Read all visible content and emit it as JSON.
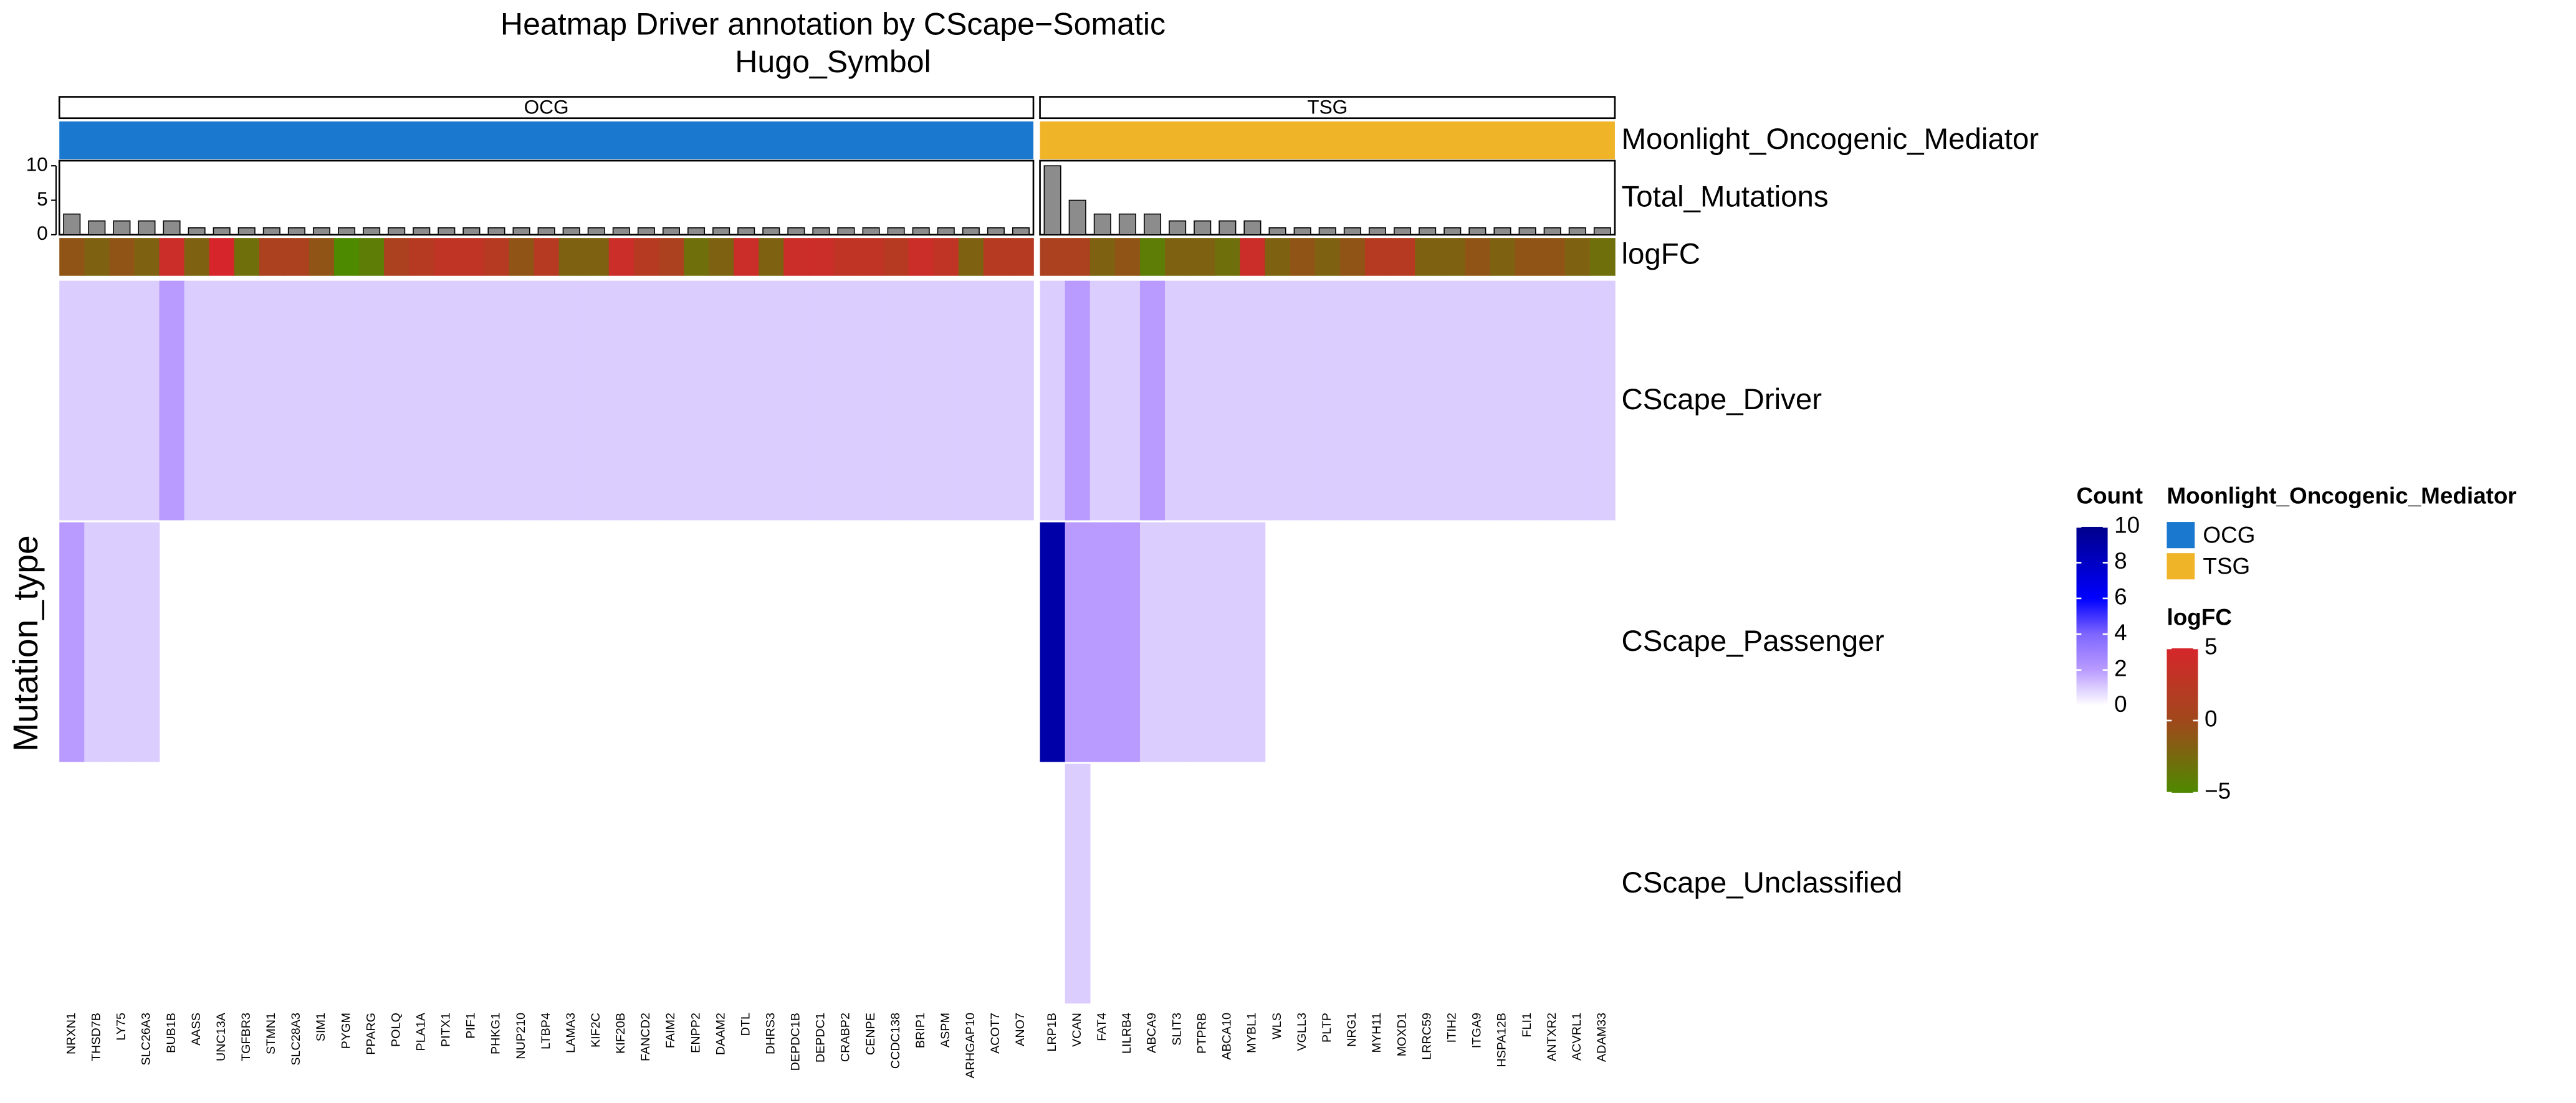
{
  "chart_data": {
    "type": "heatmap",
    "title": "Heatmap Driver annotation by CScape−Somatic",
    "column_title": "Hugo_Symbol",
    "y_label": "Mutation_type",
    "rows": [
      "CScape_Driver",
      "CScape_Passenger",
      "CScape_Unclassified"
    ],
    "annotations": {
      "group": "Moonlight_Oncogenic_Mediator",
      "bars": "Total_Mutations",
      "logfc": "logFC"
    },
    "bars_ylim": [
      0,
      10.5
    ],
    "bars_yticks": [
      0,
      5,
      10
    ],
    "bar_color": "#8c8c8c",
    "slices": [
      {
        "name": "OCG",
        "color": "#1b78cf",
        "genes": [
          "NRXN1",
          "THSD7B",
          "LY75",
          "SLC26A3",
          "BUB1B",
          "AASS",
          "UNC13A",
          "TGFBR3",
          "STMN1",
          "SLC28A3",
          "SIM1",
          "PYGM",
          "PPARG",
          "POLQ",
          "PLA1A",
          "PITX1",
          "PIF1",
          "PHKG1",
          "NUP210",
          "LTBP4",
          "LAMA3",
          "KIF2C",
          "KIF20B",
          "FANCD2",
          "FAIM2",
          "ENPP2",
          "DAAM2",
          "DTL",
          "DHRS3",
          "DEPDC1B",
          "DEPDC1",
          "CRABP2",
          "CENPE",
          "CCDC138",
          "BRIP1",
          "ASPM",
          "ARHGAP10",
          "ACOT7",
          "ANO7"
        ],
        "total_mutations": [
          3,
          2,
          2,
          2,
          2,
          1,
          1,
          1,
          1,
          1,
          1,
          1,
          1,
          1,
          1,
          1,
          1,
          1,
          1,
          1,
          1,
          1,
          1,
          1,
          1,
          1,
          1,
          1,
          1,
          1,
          1,
          1,
          1,
          1,
          1,
          1,
          1,
          1,
          1
        ],
        "logFC": [
          -1,
          -2,
          -1,
          -2,
          4,
          -2,
          5,
          -3,
          1,
          1,
          -1,
          -5,
          -4,
          1,
          2,
          3,
          3,
          2,
          -1,
          2,
          -2,
          -2,
          4,
          2,
          1,
          -3,
          -2,
          4,
          -2,
          4,
          4,
          3,
          3,
          2,
          4,
          3,
          -2,
          2,
          2
        ],
        "counts": [
          [
            1,
            1,
            1,
            1,
            2,
            1,
            1,
            1,
            1,
            1,
            1,
            1,
            1,
            1,
            1,
            1,
            1,
            1,
            1,
            1,
            1,
            1,
            1,
            1,
            1,
            1,
            1,
            1,
            1,
            1,
            1,
            1,
            1,
            1,
            1,
            1,
            1,
            1,
            1
          ],
          [
            2,
            1,
            1,
            1,
            null,
            null,
            null,
            null,
            null,
            null,
            null,
            null,
            null,
            null,
            null,
            null,
            null,
            null,
            null,
            null,
            null,
            null,
            null,
            null,
            null,
            null,
            null,
            null,
            null,
            null,
            null,
            null,
            null,
            null,
            null,
            null,
            null,
            null,
            null
          ],
          [
            null,
            null,
            null,
            null,
            null,
            null,
            null,
            null,
            null,
            null,
            null,
            null,
            null,
            null,
            null,
            null,
            null,
            null,
            null,
            null,
            null,
            null,
            null,
            null,
            null,
            null,
            null,
            null,
            null,
            null,
            null,
            null,
            null,
            null,
            null,
            null,
            null,
            null,
            null
          ]
        ]
      },
      {
        "name": "TSG",
        "color": "#f0b429",
        "genes": [
          "LRP1B",
          "VCAN",
          "FAT4",
          "LILRB4",
          "ABCA9",
          "SLIT3",
          "PTPRB",
          "ABCA10",
          "MYBL1",
          "WLS",
          "VGLL3",
          "PLTP",
          "NRG1",
          "MYH11",
          "MOXD1",
          "LRRC59",
          "ITIH2",
          "ITGA9",
          "HSPA12B",
          "FLI1",
          "ANTXR2",
          "ACVRL1",
          "ADAM33"
        ],
        "total_mutations": [
          10,
          5,
          3,
          3,
          3,
          2,
          2,
          2,
          2,
          1,
          1,
          1,
          1,
          1,
          1,
          1,
          1,
          1,
          1,
          1,
          1,
          1,
          1
        ],
        "logFC": [
          1,
          1,
          -2,
          -1,
          -4,
          -2,
          -2,
          -3,
          4,
          -2,
          -1,
          -2,
          -1,
          2,
          2,
          -2,
          -2,
          -1,
          -2,
          -1,
          -1,
          -2,
          -3
        ],
        "counts": [
          [
            1,
            2,
            1,
            1,
            2,
            1,
            1,
            1,
            1,
            1,
            1,
            1,
            1,
            1,
            1,
            1,
            1,
            1,
            1,
            1,
            1,
            1,
            1
          ],
          [
            9,
            2,
            2,
            2,
            1,
            1,
            1,
            1,
            1,
            null,
            null,
            null,
            null,
            null,
            null,
            null,
            null,
            null,
            null,
            null,
            null,
            null,
            null
          ],
          [
            null,
            1,
            null,
            null,
            null,
            null,
            null,
            null,
            null,
            null,
            null,
            null,
            null,
            null,
            null,
            null,
            null,
            null,
            null,
            null,
            null,
            null,
            null
          ]
        ]
      }
    ],
    "count_legend": {
      "title": "Count",
      "ticks": [
        0,
        2,
        4,
        6,
        8,
        10
      ],
      "colors": [
        "#ffffff",
        "#b99bff",
        "#7f66ff",
        "#0000ff",
        "#0000c4",
        "#00008b"
      ]
    },
    "logfc_legend": {
      "title": "logFC",
      "ticks": [
        {
          "value": -5,
          "label": "−5"
        },
        0,
        5
      ],
      "colors": [
        "#4e8a00",
        "#a0481c",
        "#d6262b"
      ]
    }
  }
}
